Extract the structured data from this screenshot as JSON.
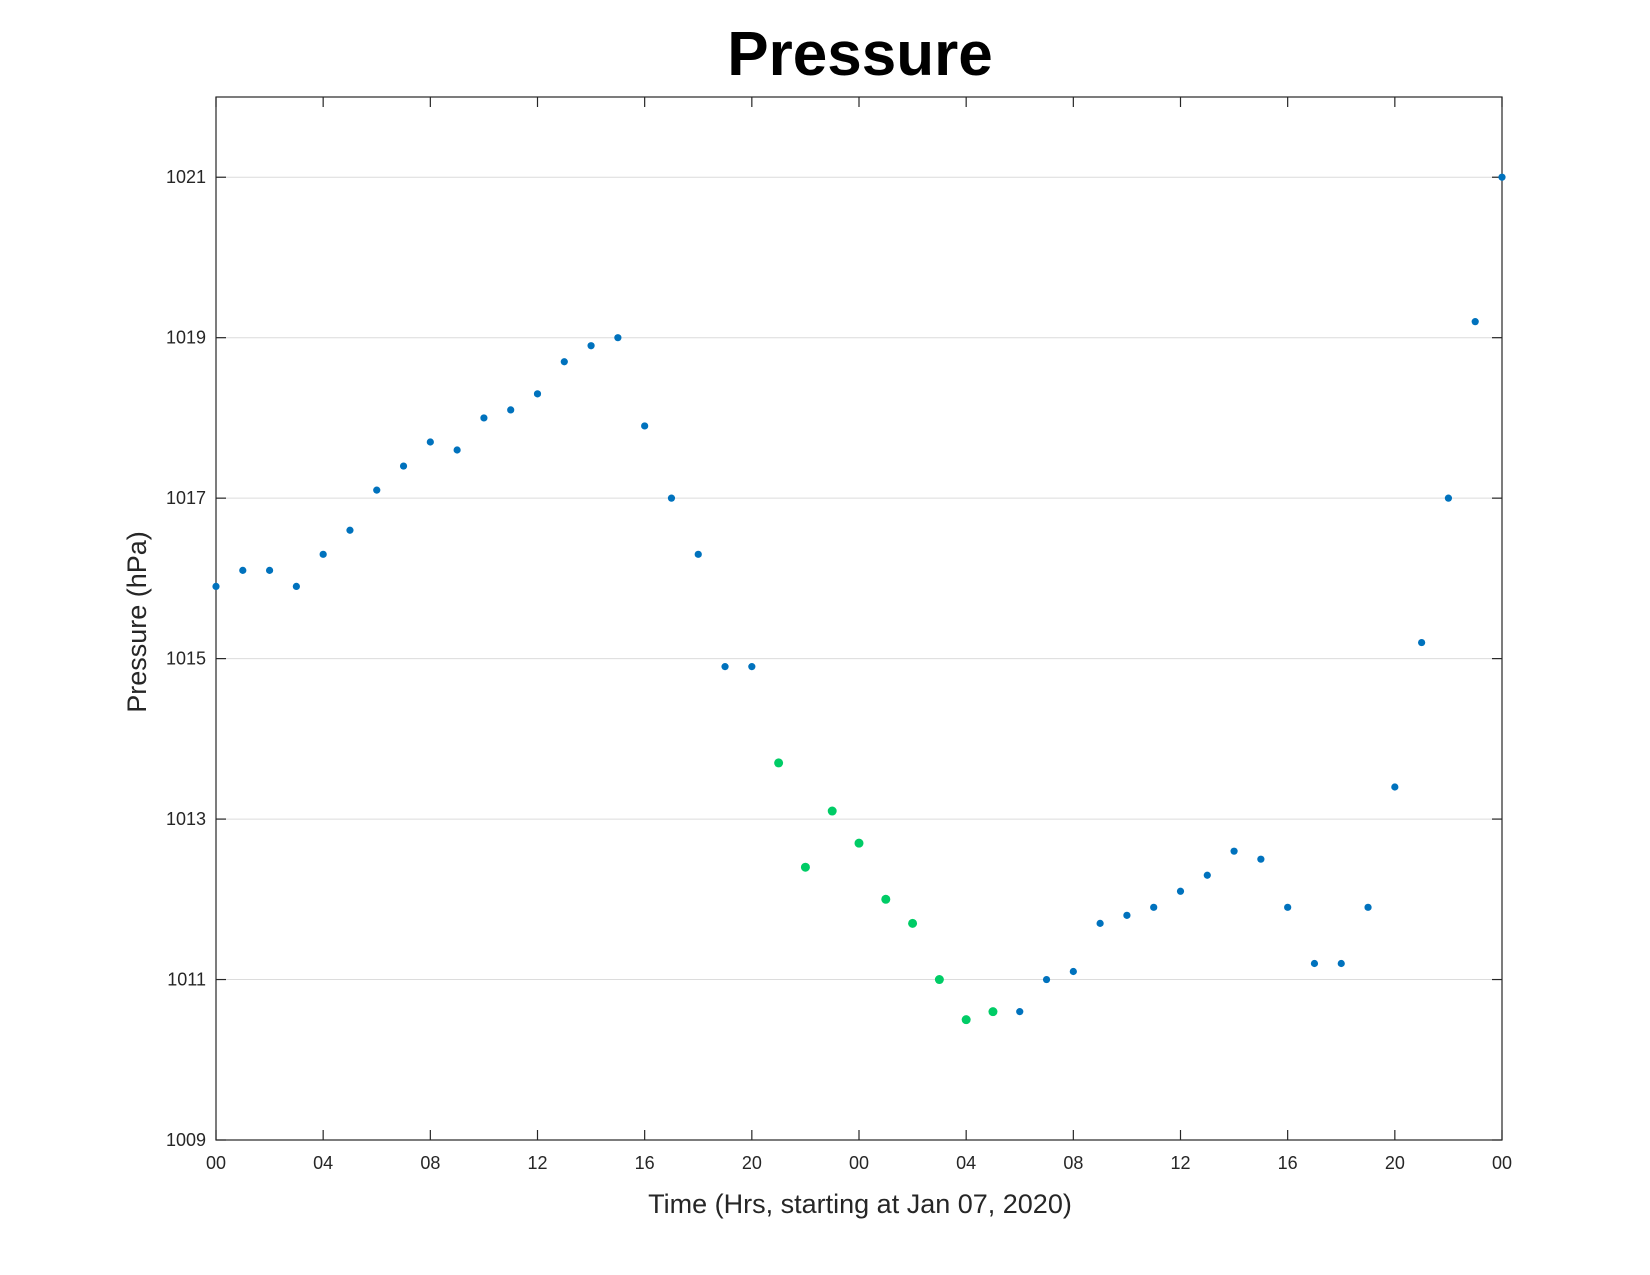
{
  "chart_data": {
    "type": "scatter",
    "title": "Pressure",
    "xlabel": "Time (Hrs, starting at Jan 07, 2020)",
    "ylabel": "Pressure (hPa)",
    "x_unit": "hours",
    "xlim": [
      0,
      48
    ],
    "ylim": [
      1009,
      1022
    ],
    "x_ticks": [
      0,
      4,
      8,
      12,
      16,
      20,
      24,
      28,
      32,
      36,
      40,
      44,
      48
    ],
    "x_tick_labels": [
      "00",
      "04",
      "08",
      "12",
      "16",
      "20",
      "00",
      "04",
      "08",
      "12",
      "16",
      "20",
      "00"
    ],
    "y_ticks": [
      1009,
      1011,
      1013,
      1015,
      1017,
      1019,
      1021
    ],
    "y_tick_labels": [
      "1009",
      "1011",
      "1013",
      "1015",
      "1017",
      "1019",
      "1021"
    ],
    "grid": "horizontal",
    "legend": "none",
    "colors": {
      "default": "#0072BD",
      "highlight": "#00CC66",
      "grid": "#DCDCDC",
      "axis": "#262626"
    },
    "series": [
      {
        "color_key": "default",
        "points": [
          [
            0,
            1015.9
          ],
          [
            1,
            1016.1
          ],
          [
            2,
            1016.1
          ],
          [
            3,
            1015.9
          ],
          [
            4,
            1016.3
          ],
          [
            5,
            1016.6
          ],
          [
            6,
            1017.1
          ],
          [
            7,
            1017.4
          ],
          [
            8,
            1017.7
          ],
          [
            9,
            1017.6
          ],
          [
            10,
            1018.0
          ],
          [
            11,
            1018.1
          ],
          [
            12,
            1018.3
          ],
          [
            13,
            1018.7
          ],
          [
            14,
            1018.9
          ],
          [
            15,
            1019.0
          ],
          [
            16,
            1017.9
          ],
          [
            17,
            1017.0
          ],
          [
            18,
            1016.3
          ],
          [
            19,
            1014.9
          ],
          [
            20,
            1014.9
          ],
          [
            30,
            1010.6
          ],
          [
            31,
            1011.0
          ],
          [
            32,
            1011.1
          ],
          [
            33,
            1011.7
          ],
          [
            34,
            1011.8
          ],
          [
            35,
            1011.9
          ],
          [
            36,
            1012.1
          ],
          [
            37,
            1012.3
          ],
          [
            38,
            1012.6
          ],
          [
            39,
            1012.5
          ],
          [
            40,
            1011.9
          ],
          [
            41,
            1011.2
          ],
          [
            42,
            1011.2
          ],
          [
            43,
            1011.9
          ],
          [
            44,
            1013.4
          ],
          [
            45,
            1015.2
          ],
          [
            46,
            1017.0
          ],
          [
            47,
            1019.2
          ],
          [
            48,
            1021.0
          ]
        ]
      },
      {
        "color_key": "highlight",
        "points": [
          [
            21,
            1013.7
          ],
          [
            22,
            1012.4
          ],
          [
            23,
            1013.1
          ],
          [
            24,
            1012.7
          ],
          [
            25,
            1012.0
          ],
          [
            26,
            1011.7
          ],
          [
            27,
            1011.0
          ],
          [
            28,
            1010.5
          ],
          [
            29,
            1010.6
          ]
        ]
      }
    ]
  }
}
